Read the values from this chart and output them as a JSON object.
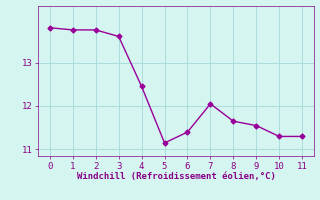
{
  "x": [
    0,
    1,
    2,
    3,
    4,
    5,
    6,
    7,
    8,
    9,
    10,
    11
  ],
  "y": [
    13.8,
    13.75,
    13.75,
    13.6,
    12.45,
    11.15,
    11.4,
    12.05,
    11.65,
    11.55,
    11.3,
    11.3
  ],
  "line_color": "#990099",
  "marker": "D",
  "marker_size": 2.5,
  "bg_color": "#d5f5f0",
  "grid_color": "#aadddd",
  "xlabel": "Windchill (Refroidissement éolien,°C)",
  "xlabel_color": "#880088",
  "tick_color": "#880088",
  "spine_color": "#880088",
  "ylim": [
    10.85,
    14.3
  ],
  "xlim": [
    -0.5,
    11.5
  ],
  "yticks": [
    11,
    12,
    13
  ],
  "xticks": [
    0,
    1,
    2,
    3,
    4,
    5,
    6,
    7,
    8,
    9,
    10,
    11
  ]
}
